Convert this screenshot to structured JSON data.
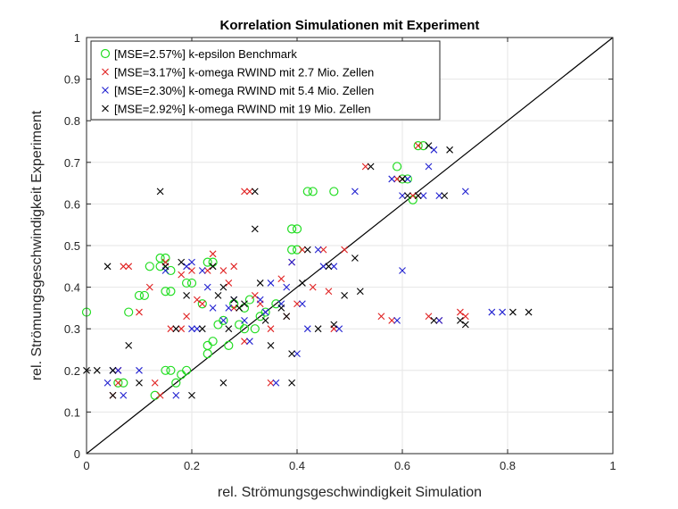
{
  "chart_data": {
    "type": "scatter",
    "title": "Korrelation Simulationen mit Experiment",
    "xlabel": "rel. Strömungsgeschwindigkeit Simulation",
    "ylabel": "rel. Strömungsgeschwindigkeit Experiment",
    "xlim": [
      0,
      1
    ],
    "ylim": [
      0,
      1
    ],
    "xticks": [
      "0",
      "0.2",
      "0.4",
      "0.6",
      "0.8",
      "1"
    ],
    "yticks": [
      "0",
      "0.1",
      "0.2",
      "0.3",
      "0.4",
      "0.5",
      "0.6",
      "0.7",
      "0.8",
      "0.9",
      "1"
    ],
    "grid": true,
    "legend_position": "top-left",
    "reference_line": {
      "type": "identity",
      "color": "#000000"
    },
    "series": [
      {
        "name": "[MSE=2.57%] k-epsilon Benchmark",
        "marker": "circle",
        "color": "#22dd22",
        "points": [
          [
            0.0,
            0.34
          ],
          [
            0.06,
            0.17
          ],
          [
            0.07,
            0.17
          ],
          [
            0.08,
            0.34
          ],
          [
            0.1,
            0.38
          ],
          [
            0.11,
            0.38
          ],
          [
            0.12,
            0.45
          ],
          [
            0.13,
            0.14
          ],
          [
            0.14,
            0.45
          ],
          [
            0.14,
            0.47
          ],
          [
            0.15,
            0.47
          ],
          [
            0.15,
            0.39
          ],
          [
            0.16,
            0.39
          ],
          [
            0.15,
            0.2
          ],
          [
            0.16,
            0.2
          ],
          [
            0.17,
            0.17
          ],
          [
            0.18,
            0.19
          ],
          [
            0.19,
            0.2
          ],
          [
            0.19,
            0.41
          ],
          [
            0.2,
            0.41
          ],
          [
            0.22,
            0.36
          ],
          [
            0.23,
            0.46
          ],
          [
            0.24,
            0.46
          ],
          [
            0.23,
            0.26
          ],
          [
            0.24,
            0.27
          ],
          [
            0.23,
            0.24
          ],
          [
            0.25,
            0.31
          ],
          [
            0.26,
            0.32
          ],
          [
            0.27,
            0.26
          ],
          [
            0.28,
            0.36
          ],
          [
            0.29,
            0.31
          ],
          [
            0.3,
            0.35
          ],
          [
            0.31,
            0.37
          ],
          [
            0.32,
            0.3
          ],
          [
            0.33,
            0.33
          ],
          [
            0.34,
            0.34
          ],
          [
            0.36,
            0.36
          ],
          [
            0.39,
            0.49
          ],
          [
            0.4,
            0.49
          ],
          [
            0.39,
            0.54
          ],
          [
            0.4,
            0.54
          ],
          [
            0.42,
            0.63
          ],
          [
            0.43,
            0.63
          ],
          [
            0.47,
            0.63
          ],
          [
            0.59,
            0.69
          ],
          [
            0.6,
            0.66
          ],
          [
            0.61,
            0.66
          ],
          [
            0.63,
            0.74
          ],
          [
            0.62,
            0.61
          ],
          [
            0.64,
            0.74
          ],
          [
            0.16,
            0.44
          ],
          [
            0.3,
            0.3
          ]
        ]
      },
      {
        "name": "[MSE=3.17%] k-omega RWIND mit 2.7 Mio. Zellen",
        "marker": "x",
        "color": "#e02020",
        "points": [
          [
            0.05,
            0.14
          ],
          [
            0.06,
            0.2
          ],
          [
            0.06,
            0.17
          ],
          [
            0.07,
            0.45
          ],
          [
            0.08,
            0.45
          ],
          [
            0.1,
            0.34
          ],
          [
            0.12,
            0.4
          ],
          [
            0.13,
            0.17
          ],
          [
            0.14,
            0.14
          ],
          [
            0.15,
            0.46
          ],
          [
            0.16,
            0.3
          ],
          [
            0.18,
            0.3
          ],
          [
            0.18,
            0.43
          ],
          [
            0.19,
            0.33
          ],
          [
            0.2,
            0.44
          ],
          [
            0.21,
            0.37
          ],
          [
            0.22,
            0.36
          ],
          [
            0.23,
            0.44
          ],
          [
            0.24,
            0.48
          ],
          [
            0.26,
            0.44
          ],
          [
            0.27,
            0.41
          ],
          [
            0.28,
            0.35
          ],
          [
            0.28,
            0.45
          ],
          [
            0.3,
            0.27
          ],
          [
            0.3,
            0.63
          ],
          [
            0.31,
            0.63
          ],
          [
            0.32,
            0.38
          ],
          [
            0.33,
            0.36
          ],
          [
            0.35,
            0.17
          ],
          [
            0.35,
            0.3
          ],
          [
            0.37,
            0.42
          ],
          [
            0.38,
            0.33
          ],
          [
            0.39,
            0.46
          ],
          [
            0.4,
            0.36
          ],
          [
            0.41,
            0.49
          ],
          [
            0.43,
            0.4
          ],
          [
            0.45,
            0.49
          ],
          [
            0.46,
            0.39
          ],
          [
            0.47,
            0.3
          ],
          [
            0.49,
            0.49
          ],
          [
            0.53,
            0.69
          ],
          [
            0.56,
            0.33
          ],
          [
            0.58,
            0.32
          ],
          [
            0.59,
            0.66
          ],
          [
            0.6,
            0.66
          ],
          [
            0.62,
            0.62
          ],
          [
            0.63,
            0.74
          ],
          [
            0.63,
            0.62
          ],
          [
            0.65,
            0.33
          ],
          [
            0.67,
            0.32
          ],
          [
            0.71,
            0.34
          ],
          [
            0.72,
            0.33
          ]
        ]
      },
      {
        "name": "[MSE=2.30%] k-omega RWIND mit 5.4 Mio. Zellen",
        "marker": "x",
        "color": "#2020d0",
        "points": [
          [
            0.04,
            0.17
          ],
          [
            0.05,
            0.2
          ],
          [
            0.06,
            0.2
          ],
          [
            0.07,
            0.14
          ],
          [
            0.1,
            0.2
          ],
          [
            0.15,
            0.44
          ],
          [
            0.17,
            0.14
          ],
          [
            0.19,
            0.45
          ],
          [
            0.2,
            0.46
          ],
          [
            0.2,
            0.3
          ],
          [
            0.21,
            0.3
          ],
          [
            0.22,
            0.44
          ],
          [
            0.23,
            0.4
          ],
          [
            0.24,
            0.35
          ],
          [
            0.26,
            0.32
          ],
          [
            0.27,
            0.35
          ],
          [
            0.28,
            0.37
          ],
          [
            0.3,
            0.32
          ],
          [
            0.31,
            0.27
          ],
          [
            0.33,
            0.37
          ],
          [
            0.34,
            0.34
          ],
          [
            0.35,
            0.41
          ],
          [
            0.36,
            0.17
          ],
          [
            0.37,
            0.36
          ],
          [
            0.38,
            0.4
          ],
          [
            0.39,
            0.46
          ],
          [
            0.4,
            0.24
          ],
          [
            0.41,
            0.36
          ],
          [
            0.42,
            0.3
          ],
          [
            0.44,
            0.49
          ],
          [
            0.45,
            0.45
          ],
          [
            0.47,
            0.45
          ],
          [
            0.48,
            0.3
          ],
          [
            0.51,
            0.63
          ],
          [
            0.58,
            0.66
          ],
          [
            0.59,
            0.32
          ],
          [
            0.6,
            0.62
          ],
          [
            0.61,
            0.66
          ],
          [
            0.64,
            0.62
          ],
          [
            0.65,
            0.69
          ],
          [
            0.66,
            0.73
          ],
          [
            0.67,
            0.32
          ],
          [
            0.67,
            0.62
          ],
          [
            0.72,
            0.63
          ],
          [
            0.77,
            0.34
          ],
          [
            0.79,
            0.34
          ],
          [
            0.6,
            0.44
          ]
        ]
      },
      {
        "name": "[MSE=2.92%] k-omega RWIND mit 19 Mio. Zellen",
        "marker": "x",
        "color": "#000000",
        "points": [
          [
            0.0,
            0.2
          ],
          [
            0.02,
            0.2
          ],
          [
            0.04,
            0.45
          ],
          [
            0.05,
            0.14
          ],
          [
            0.05,
            0.2
          ],
          [
            0.08,
            0.26
          ],
          [
            0.1,
            0.17
          ],
          [
            0.14,
            0.63
          ],
          [
            0.15,
            0.45
          ],
          [
            0.17,
            0.3
          ],
          [
            0.18,
            0.46
          ],
          [
            0.19,
            0.38
          ],
          [
            0.2,
            0.14
          ],
          [
            0.22,
            0.3
          ],
          [
            0.24,
            0.45
          ],
          [
            0.25,
            0.38
          ],
          [
            0.26,
            0.4
          ],
          [
            0.26,
            0.17
          ],
          [
            0.27,
            0.3
          ],
          [
            0.28,
            0.37
          ],
          [
            0.29,
            0.35
          ],
          [
            0.3,
            0.36
          ],
          [
            0.32,
            0.63
          ],
          [
            0.32,
            0.54
          ],
          [
            0.33,
            0.41
          ],
          [
            0.34,
            0.32
          ],
          [
            0.35,
            0.26
          ],
          [
            0.37,
            0.35
          ],
          [
            0.38,
            0.33
          ],
          [
            0.39,
            0.24
          ],
          [
            0.39,
            0.17
          ],
          [
            0.41,
            0.41
          ],
          [
            0.42,
            0.49
          ],
          [
            0.44,
            0.3
          ],
          [
            0.46,
            0.45
          ],
          [
            0.47,
            0.31
          ],
          [
            0.49,
            0.38
          ],
          [
            0.51,
            0.47
          ],
          [
            0.52,
            0.39
          ],
          [
            0.54,
            0.69
          ],
          [
            0.6,
            0.66
          ],
          [
            0.61,
            0.62
          ],
          [
            0.63,
            0.62
          ],
          [
            0.65,
            0.74
          ],
          [
            0.66,
            0.32
          ],
          [
            0.68,
            0.62
          ],
          [
            0.69,
            0.73
          ],
          [
            0.71,
            0.32
          ],
          [
            0.72,
            0.31
          ],
          [
            0.81,
            0.34
          ],
          [
            0.84,
            0.34
          ]
        ]
      }
    ]
  }
}
